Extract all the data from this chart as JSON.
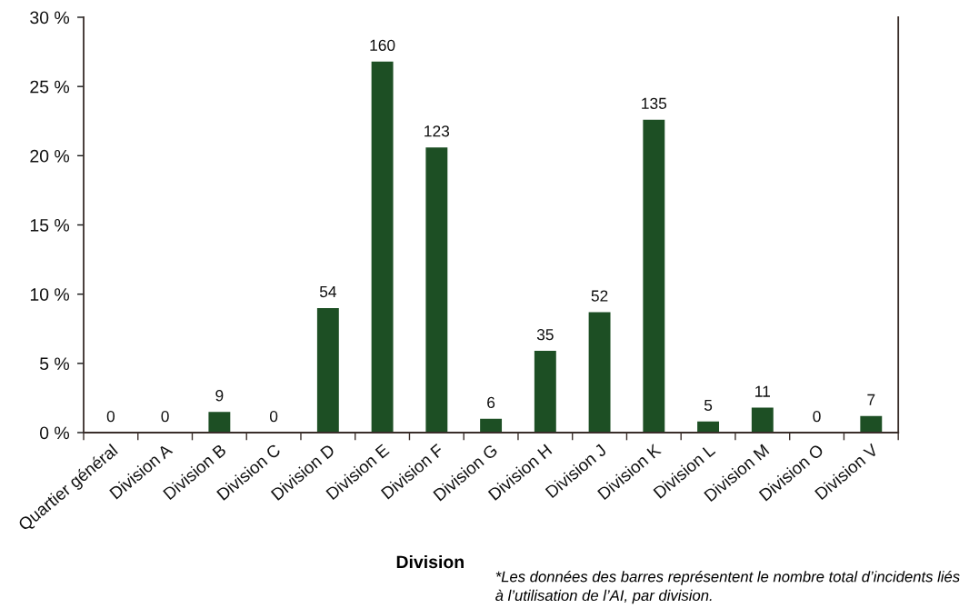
{
  "chart_data": {
    "type": "bar",
    "xlabel": "Division",
    "categories": [
      "Quartier général",
      "Division A",
      "Division B",
      "Division C",
      "Division D",
      "Division E",
      "Division F",
      "Division G",
      "Division H",
      "Division J",
      "Division K",
      "Division L",
      "Division M",
      "Division O",
      "Division V"
    ],
    "values": [
      0,
      0,
      1.5,
      0,
      9.0,
      26.8,
      20.6,
      1.0,
      5.9,
      8.7,
      22.6,
      0.8,
      1.8,
      0,
      1.2
    ],
    "color": "#1d4f24",
    "ylim": [
      0,
      30
    ],
    "yticks": [
      {
        "value": 0,
        "label": "0 %"
      },
      {
        "value": 5,
        "label": "5 %"
      },
      {
        "value": 10,
        "label": "10 %"
      },
      {
        "value": 15,
        "label": "15 %"
      },
      {
        "value": 20,
        "label": "20 %"
      },
      {
        "value": 25,
        "label": "25 %"
      },
      {
        "value": 30,
        "label": "30 %"
      }
    ],
    "annotations": [
      {
        "text": "0",
        "x": "Quartier général",
        "y": 0
      },
      {
        "text": "0",
        "x": "Division A",
        "y": 0
      },
      {
        "text": "9",
        "x": "Division B",
        "y": 1.5
      },
      {
        "text": "0",
        "x": "Division C",
        "y": 0
      },
      {
        "text": "54",
        "x": "Division D",
        "y": 9.0
      },
      {
        "text": "160",
        "x": "Division E",
        "y": 26.8
      },
      {
        "text": "123",
        "x": "Division F",
        "y": 20.6
      },
      {
        "text": "6",
        "x": "Division G",
        "y": 1.0
      },
      {
        "text": "35",
        "x": "Division H",
        "y": 5.9
      },
      {
        "text": "52",
        "x": "Division J",
        "y": 8.7
      },
      {
        "text": "135",
        "x": "Division K",
        "y": 22.6
      },
      {
        "text": "5",
        "x": "Division L",
        "y": 0.8
      },
      {
        "text": "11",
        "x": "Division M",
        "y": 1.8
      },
      {
        "text": "0",
        "x": "Division O",
        "y": 0
      },
      {
        "text": "7",
        "x": "Division V",
        "y": 1.2
      },
      "*Les données des barres représentent le nombre total d’incidents liés à l’utilisation de l’AI, par division."
    ]
  }
}
